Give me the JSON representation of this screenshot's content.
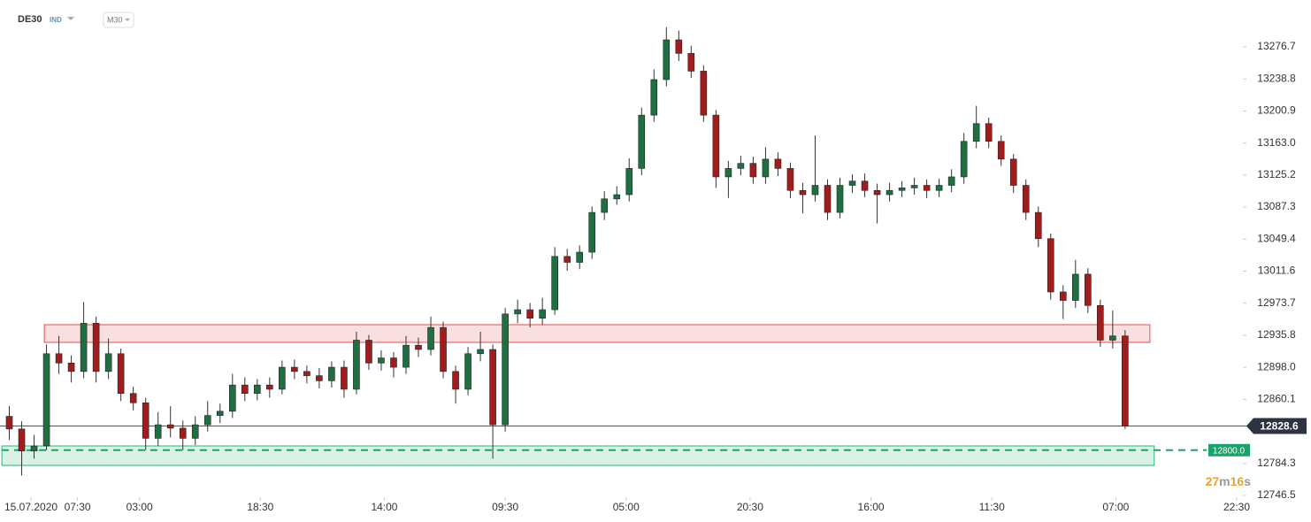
{
  "header": {
    "symbol": "DE30",
    "market": "IND",
    "timeframe": "M30"
  },
  "chart_data": {
    "type": "candlestick",
    "x": [
      -4,
      0,
      4,
      8,
      12,
      16,
      20,
      24,
      28,
      32,
      36,
      40,
      44,
      48,
      52,
      56,
      60,
      64,
      68,
      72,
      76,
      80,
      84,
      88,
      92,
      96,
      100,
      104,
      108,
      112,
      116,
      120,
      124,
      128,
      132,
      136,
      140,
      144,
      148,
      152,
      156,
      160,
      164,
      168,
      172,
      176,
      180,
      184,
      188,
      192,
      196,
      200,
      204,
      208,
      212,
      216,
      220,
      224,
      228,
      232,
      236,
      240,
      244,
      248,
      252,
      256,
      260,
      264,
      268,
      272,
      276,
      280,
      284,
      288,
      292,
      296,
      300,
      304,
      308,
      312,
      316,
      320,
      324,
      328,
      332,
      336,
      340,
      344,
      348,
      352,
      356
    ],
    "open": [
      12840,
      12825,
      12799,
      12805,
      12914,
      12903,
      12893,
      12950,
      12893,
      12914,
      12867,
      12856,
      12814,
      12830,
      12826,
      12814,
      12830,
      12841,
      12846,
      12877,
      12867,
      12877,
      12872,
      12898,
      12893,
      12888,
      12882,
      12898,
      12872,
      12930,
      12903,
      12909,
      12898,
      12924,
      12919,
      12945,
      12893,
      12872,
      12914,
      12919,
      12830,
      12961,
      12966,
      12956,
      12966,
      13029,
      13022,
      13034,
      13081,
      13097,
      13102,
      13133,
      13196,
      13238,
      13285,
      13269,
      13248,
      13196,
      13123,
      13133,
      13139,
      13123,
      13144,
      13133,
      13107,
      13102,
      13113,
      13081,
      13113,
      13118,
      13107,
      13102,
      13107,
      13110,
      13113,
      13107,
      13113,
      13123,
      13165,
      13186,
      13165,
      13144,
      13113,
      13081,
      13050,
      12987,
      12977,
      13008,
      12971,
      12930,
      12935
    ],
    "high": [
      12852,
      12834,
      12818,
      12925,
      12935,
      12912,
      12975,
      12958,
      12932,
      12920,
      12875,
      12862,
      12845,
      12852,
      12835,
      12840,
      12858,
      12855,
      12890,
      12886,
      12884,
      12886,
      12906,
      12907,
      12900,
      12897,
      12905,
      12906,
      12940,
      12936,
      12918,
      12916,
      12935,
      12933,
      12958,
      12952,
      12900,
      12922,
      12940,
      12925,
      12968,
      12978,
      12974,
      12980,
      13040,
      13038,
      13042,
      13088,
      13106,
      13112,
      13145,
      13205,
      13250,
      13300,
      13296,
      13278,
      13255,
      13202,
      13142,
      13148,
      13147,
      13158,
      13152,
      13140,
      13116,
      13172,
      13120,
      13122,
      13126,
      13127,
      13115,
      13116,
      13118,
      13122,
      13120,
      13121,
      13132,
      13175,
      13207,
      13193,
      13172,
      13150,
      13120,
      13088,
      13056,
      12995,
      13025,
      13015,
      12978,
      12965,
      12942
    ],
    "low": [
      12812,
      12770,
      12790,
      12800,
      12890,
      12880,
      12885,
      12880,
      12884,
      12858,
      12847,
      12800,
      12805,
      12815,
      12800,
      12806,
      12822,
      12832,
      12838,
      12858,
      12859,
      12862,
      12866,
      12884,
      12879,
      12873,
      12874,
      12862,
      12866,
      12895,
      12894,
      12886,
      12890,
      12910,
      12912,
      12885,
      12855,
      12865,
      12905,
      12790,
      12822,
      12950,
      12945,
      12948,
      12960,
      13012,
      13014,
      13026,
      13072,
      13090,
      13094,
      13125,
      13188,
      13230,
      13260,
      13240,
      13188,
      13110,
      13098,
      13125,
      13115,
      13115,
      13124,
      13098,
      13080,
      13094,
      13072,
      13074,
      13104,
      13099,
      13068,
      13094,
      13099,
      13102,
      13098,
      13099,
      13105,
      13115,
      13157,
      13157,
      13136,
      13104,
      13072,
      13040,
      12978,
      12955,
      12968,
      12962,
      12922,
      12920,
      12825
    ],
    "close": [
      12825,
      12799,
      12805,
      12914,
      12903,
      12893,
      12950,
      12893,
      12914,
      12867,
      12856,
      12814,
      12830,
      12826,
      12814,
      12830,
      12841,
      12846,
      12877,
      12867,
      12877,
      12872,
      12898,
      12893,
      12888,
      12882,
      12898,
      12872,
      12930,
      12903,
      12909,
      12898,
      12924,
      12919,
      12945,
      12893,
      12872,
      12914,
      12919,
      12830,
      12961,
      12966,
      12956,
      12966,
      13029,
      13022,
      13034,
      13081,
      13097,
      13102,
      13133,
      13196,
      13238,
      13285,
      13269,
      13248,
      13196,
      13123,
      13133,
      13139,
      13123,
      13144,
      13133,
      13107,
      13102,
      13113,
      13081,
      13113,
      13118,
      13107,
      13102,
      13107,
      13110,
      13113,
      13107,
      13113,
      13123,
      13165,
      13186,
      13165,
      13144,
      13113,
      13081,
      13050,
      12987,
      12977,
      13008,
      12971,
      12930,
      12935,
      12828.6
    ],
    "up_color": "#1f6f43",
    "down_color": "#a11d1d",
    "xlim": [
      -7,
      394
    ],
    "xticks": [
      {
        "value": 3,
        "label": "15.07.2020"
      },
      {
        "value": 18,
        "label": "07:30"
      },
      {
        "value": 38,
        "label": "03:00"
      },
      {
        "value": 77,
        "label": "18:30"
      },
      {
        "value": 117,
        "label": "14:00"
      },
      {
        "value": 156,
        "label": "09:30"
      },
      {
        "value": 195,
        "label": "05:00"
      },
      {
        "value": 235,
        "label": "20:30"
      },
      {
        "value": 274,
        "label": "16:00"
      },
      {
        "value": 313,
        "label": "11:30"
      },
      {
        "value": 353,
        "label": "07:00"
      },
      {
        "value": 392,
        "label": "22:30"
      }
    ],
    "ylim": [
      12720.3,
      13332.1
    ],
    "yticks": [
      12746.5,
      12784.3,
      12860.1,
      {
        "value": 12898,
        "label": "12898.0"
      },
      12935.8,
      12973.7,
      13011.6,
      13049.4,
      13087.3,
      13125.2,
      {
        "value": 13163,
        "label": "13163.0"
      },
      13200.9,
      13238.8,
      13276.7
    ],
    "zones": [
      {
        "from": 12927.4,
        "to": 12948.3,
        "x_from": 7.3,
        "x_to": 364,
        "color": "#e05050"
      },
      {
        "from": 12782,
        "to": 12805,
        "x_from": -6.4,
        "x_to": 365.4,
        "color": "#2bb673"
      }
    ],
    "level": {
      "value": 12800,
      "label": "12800.0",
      "color": "#1aa36a"
    },
    "last_price": 12828.6,
    "countdown": {
      "minutes": 27,
      "minutes_unit": "m",
      "seconds": 16,
      "seconds_unit": "s"
    }
  }
}
